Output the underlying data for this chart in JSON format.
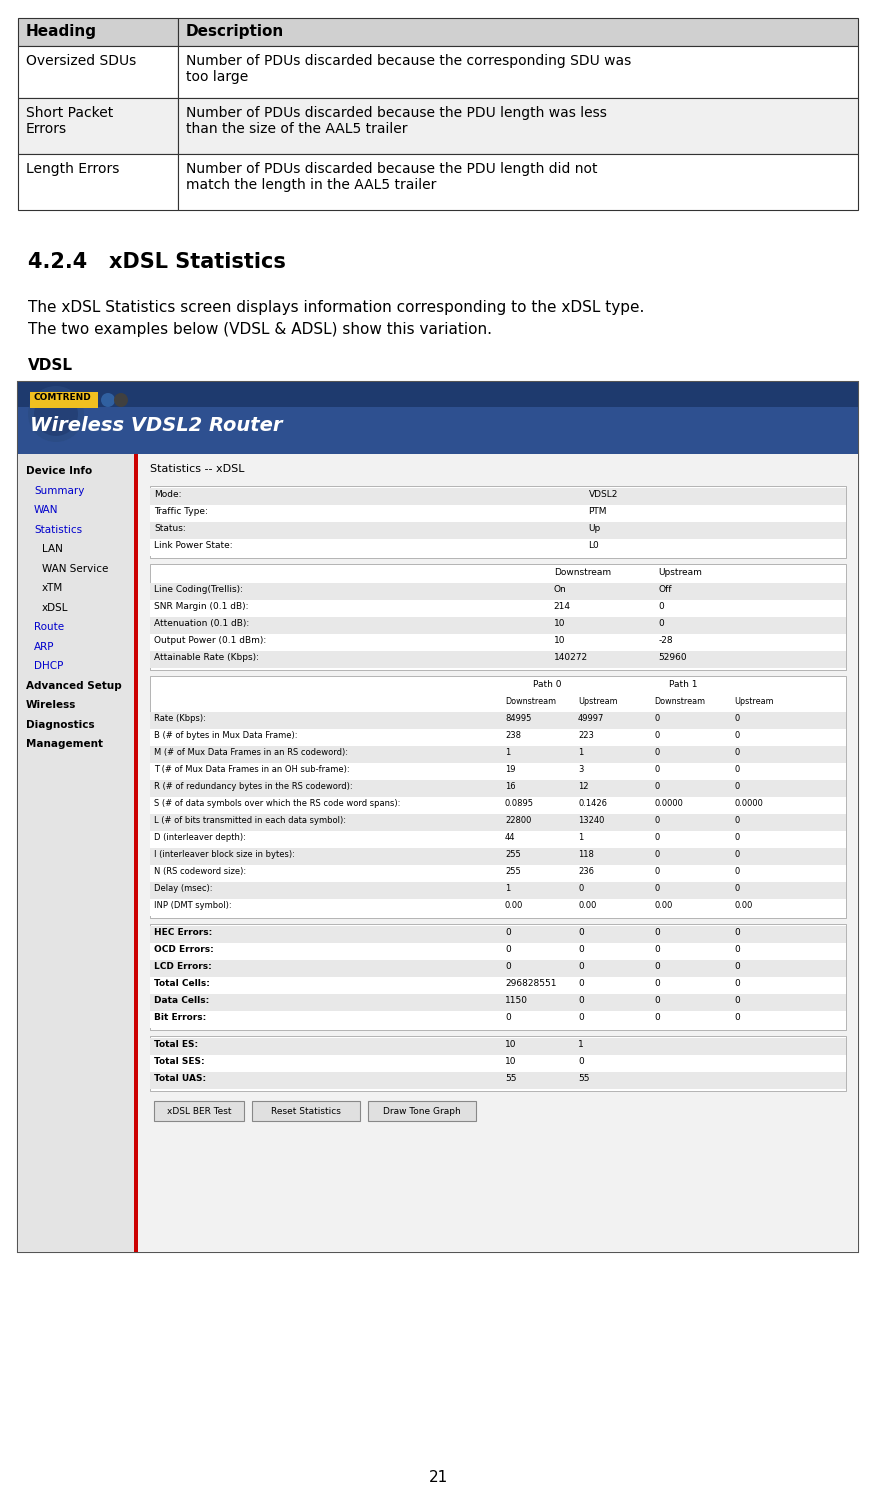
{
  "bg_color": "#ffffff",
  "table_headers": [
    "Heading",
    "Description"
  ],
  "table_rows": [
    [
      "Oversized SDUs",
      "Number of PDUs discarded because the corresponding SDU was\ntoo large"
    ],
    [
      "Short Packet\nErrors",
      "Number of PDUs discarded because the PDU length was less\nthan the size of the AAL5 trailer"
    ],
    [
      "Length Errors",
      "Number of PDUs discarded because the PDU length did not\nmatch the length in the AAL5 trailer"
    ]
  ],
  "section_title": "4.2.4   xDSL Statistics",
  "body_text_line1": "The xDSL Statistics screen displays information corresponding to the xDSL type.",
  "body_text_line2": "The two examples below (VDSL & ADSL) show this variation.",
  "vdsl_label": "VDSL",
  "page_number": "21",
  "menu_items": [
    [
      "Device Info",
      true,
      false
    ],
    [
      "Summary",
      false,
      true
    ],
    [
      "WAN",
      false,
      true
    ],
    [
      "Statistics",
      false,
      true
    ],
    [
      "LAN",
      false,
      false
    ],
    [
      "WAN Service",
      false,
      false
    ],
    [
      "xTM",
      false,
      false
    ],
    [
      "xDSL",
      false,
      false
    ],
    [
      "Route",
      false,
      true
    ],
    [
      "ARP",
      false,
      true
    ],
    [
      "DHCP",
      false,
      true
    ],
    [
      "Advanced Setup",
      true,
      false
    ],
    [
      "Wireless",
      true,
      false
    ],
    [
      "Diagnostics",
      true,
      false
    ],
    [
      "Management",
      true,
      false
    ]
  ],
  "stats_title": "Statistics -- xDSL",
  "mode_rows": [
    [
      "Mode:",
      "VDSL2"
    ],
    [
      "Traffic Type:",
      "PTM"
    ],
    [
      "Status:",
      "Up"
    ],
    [
      "Link Power State:",
      "L0"
    ]
  ],
  "ds_us_rows": [
    [
      "Line Coding(Trellis):",
      "On",
      "Off"
    ],
    [
      "SNR Margin (0.1 dB):",
      "214",
      "0"
    ],
    [
      "Attenuation (0.1 dB):",
      "10",
      "0"
    ],
    [
      "Output Power (0.1 dBm):",
      "10",
      "-28"
    ],
    [
      "Attainable Rate (Kbps):",
      "140272",
      "52960"
    ]
  ],
  "path_rows": [
    [
      "Rate (Kbps):",
      "84995",
      "49997",
      "0",
      "0"
    ],
    [
      "B (# of bytes in Mux Data Frame):",
      "238",
      "223",
      "0",
      "0"
    ],
    [
      "M (# of Mux Data Frames in an RS codeword):",
      "1",
      "1",
      "0",
      "0"
    ],
    [
      "T (# of Mux Data Frames in an OH sub-frame):",
      "19",
      "3",
      "0",
      "0"
    ],
    [
      "R (# of redundancy bytes in the RS codeword):",
      "16",
      "12",
      "0",
      "0"
    ],
    [
      "S (# of data symbols over which the RS code word spans):",
      "0.0895",
      "0.1426",
      "0.0000",
      "0.0000"
    ],
    [
      "L (# of bits transmitted in each data symbol):",
      "22800",
      "13240",
      "0",
      "0"
    ],
    [
      "D (interleaver depth):",
      "44",
      "1",
      "0",
      "0"
    ],
    [
      "I (interleaver block size in bytes):",
      "255",
      "118",
      "0",
      "0"
    ],
    [
      "N (RS codeword size):",
      "255",
      "236",
      "0",
      "0"
    ],
    [
      "Delay (msec):",
      "1",
      "0",
      "0",
      "0"
    ],
    [
      "INP (DMT symbol):",
      "0.00",
      "0.00",
      "0.00",
      "0.00"
    ]
  ],
  "error_rows": [
    [
      "HEC Errors:",
      "0",
      "0",
      "0",
      "0"
    ],
    [
      "OCD Errors:",
      "0",
      "0",
      "0",
      "0"
    ],
    [
      "LCD Errors:",
      "0",
      "0",
      "0",
      "0"
    ],
    [
      "Total Cells:",
      "296828551",
      "0",
      "0",
      "0"
    ],
    [
      "Data Cells:",
      "1150",
      "0",
      "0",
      "0"
    ],
    [
      "Bit Errors:",
      "0",
      "0",
      "0",
      "0"
    ]
  ],
  "total_rows": [
    [
      "Total ES:",
      "10",
      "1"
    ],
    [
      "Total SES:",
      "10",
      "0"
    ],
    [
      "Total UAS:",
      "55",
      "55"
    ]
  ],
  "buttons": [
    "xDSL BER Test",
    "Reset Statistics",
    "Draw Tone Graph"
  ],
  "header_dark": "#1e3a6e",
  "header_mid": "#2e5090",
  "sidebar_bg": "#e4e4e4",
  "content_bg": "#f2f2f2",
  "inner_white": "#ffffff",
  "inner_alt": "#e8e8e8",
  "border_color": "#999999",
  "red_accent": "#cc0000",
  "table_hdr_bg": "#d0d0d0",
  "row1_bg": "#ffffff",
  "row2_bg": "#f0f0f0"
}
